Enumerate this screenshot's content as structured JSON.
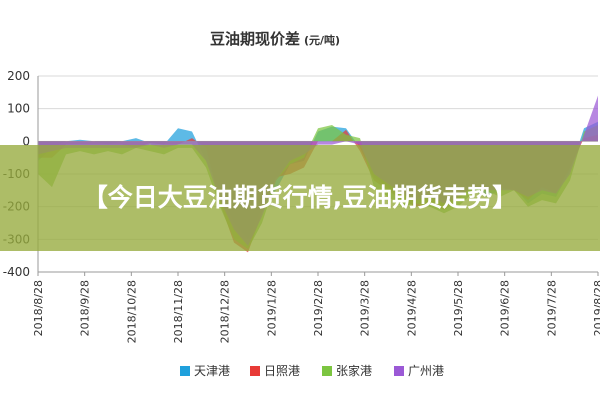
{
  "overlay": {
    "text": "【今日大豆油期货行情,豆油期货走势】"
  },
  "chart_data": {
    "type": "area",
    "title": "豆油期现价差",
    "unit": "(元/吨)",
    "ylim": [
      -400,
      200
    ],
    "yticks": [
      200,
      100,
      0,
      -100,
      -200,
      -300,
      -400
    ],
    "x_tick_labels": [
      "2018/8/28",
      "2018/9/28",
      "2018/10/28",
      "2018/11/28",
      "2018/12/28",
      "2019/1/28",
      "2019/2/28",
      "2019/3/28",
      "2019/4/28",
      "2019/5/28",
      "2019/6/28",
      "2019/7/28",
      "2019/8/28"
    ],
    "grid": true,
    "legend_position": "bottom",
    "x": [
      0,
      0.3,
      0.6,
      0.9,
      1.2,
      1.5,
      1.8,
      2.1,
      2.4,
      2.7,
      3.0,
      3.3,
      3.6,
      3.9,
      4.2,
      4.5,
      4.8,
      5.1,
      5.4,
      5.7,
      6.0,
      6.3,
      6.6,
      6.9,
      7.2,
      7.5,
      7.8,
      8.1,
      8.4,
      8.7,
      9.0,
      9.3,
      9.6,
      9.9,
      10.2,
      10.5,
      10.8,
      11.1,
      11.4,
      11.7,
      12.0
    ],
    "series": [
      {
        "name": "天津港",
        "color": "#1fa0dc",
        "values": [
          -60,
          -20,
          0,
          5,
          0,
          -10,
          0,
          10,
          -5,
          -10,
          40,
          30,
          -60,
          -150,
          -250,
          -300,
          -200,
          -150,
          -70,
          -60,
          30,
          45,
          40,
          -20,
          -110,
          -140,
          -180,
          -200,
          -170,
          -200,
          -170,
          -150,
          -170,
          -150,
          -140,
          -190,
          -160,
          -170,
          -90,
          40,
          60
        ]
      },
      {
        "name": "日照港",
        "color": "#e83a36",
        "values": [
          -50,
          -50,
          -10,
          -10,
          -10,
          -10,
          -10,
          -20,
          -5,
          -10,
          -10,
          10,
          -20,
          -190,
          -310,
          -340,
          -220,
          -110,
          -100,
          -80,
          0,
          0,
          35,
          -30,
          -120,
          -150,
          -180,
          -200,
          -190,
          -210,
          -180,
          -140,
          -150,
          -140,
          -150,
          -180,
          -140,
          -160,
          -80,
          10,
          20
        ]
      },
      {
        "name": "张家港",
        "color": "#7cc540",
        "values": [
          -100,
          -140,
          -40,
          -30,
          -40,
          -30,
          -40,
          -20,
          -30,
          -40,
          -20,
          -20,
          -80,
          -200,
          -300,
          -330,
          -250,
          -120,
          -70,
          -50,
          40,
          50,
          20,
          10,
          -140,
          -170,
          -200,
          -190,
          -200,
          -220,
          -200,
          -160,
          -150,
          -170,
          -150,
          -200,
          -180,
          -190,
          -120,
          30,
          50
        ]
      },
      {
        "name": "广州港",
        "color": "#9b59d6",
        "values": [
          -40,
          -30,
          -20,
          -20,
          -20,
          -20,
          -20,
          -20,
          -10,
          -20,
          -10,
          -10,
          -60,
          -180,
          -270,
          -320,
          -230,
          -120,
          -60,
          -40,
          -10,
          -10,
          0,
          -10,
          -100,
          -130,
          -160,
          -180,
          -170,
          -190,
          -170,
          -140,
          -150,
          -150,
          -150,
          -170,
          -150,
          -160,
          -100,
          20,
          140
        ]
      }
    ]
  }
}
